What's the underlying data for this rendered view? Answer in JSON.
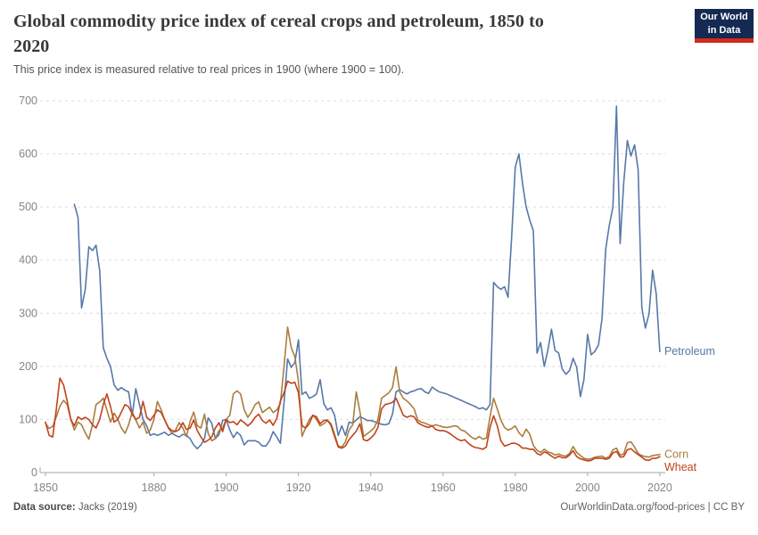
{
  "header": {
    "title_line1": "Global commodity price index of cereal crops and petroleum, 1850 to",
    "title_line2": "2020",
    "subtitle": "This price index is measured relative to real prices in 1900 (where 1900 = 100).",
    "logo": {
      "line1": "Our World",
      "line2": "in Data",
      "bg_color": "#152A52",
      "accent_color": "#D22A1C"
    }
  },
  "footer": {
    "source_label": "Data source:",
    "source_value": " Jacks (2019)",
    "right_text": "OurWorldinData.org/food-prices | CC BY"
  },
  "chart_data": {
    "type": "line",
    "title": "Global commodity price index of cereal crops and petroleum, 1850 to 2020",
    "subtitle": "This price index is measured relative to real prices in 1900 (where 1900 = 100).",
    "grid": "dashed horizontal",
    "legend_position": "end-of-line labels",
    "style": {
      "grid_color": "#dcdcdc",
      "axis_color": "#a6a6a6",
      "tick_label_color": "#858585"
    },
    "x_axis": {
      "range": [
        1850,
        2021
      ],
      "ticks": [
        1850,
        1880,
        1900,
        1920,
        1940,
        1960,
        1980,
        2000,
        2020
      ]
    },
    "y_axis": {
      "range": [
        0,
        700
      ],
      "ticks": [
        0,
        100,
        200,
        300,
        400,
        500,
        600,
        700
      ]
    },
    "series": [
      {
        "name": "Petroleum",
        "color": "#5778A8",
        "start_year": 1858,
        "values": [
          505,
          480,
          310,
          345,
          425,
          418,
          428,
          380,
          235,
          215,
          200,
          165,
          155,
          160,
          155,
          152,
          108,
          158,
          128,
          100,
          88,
          70,
          73,
          70,
          73,
          76,
          70,
          74,
          70,
          67,
          72,
          70,
          64,
          52,
          45,
          52,
          64,
          103,
          93,
          64,
          71,
          98,
          100,
          80,
          66,
          76,
          70,
          52,
          60,
          60,
          60,
          57,
          50,
          50,
          60,
          77,
          67,
          55,
          132,
          214,
          198,
          207,
          250,
          147,
          152,
          140,
          143,
          148,
          175,
          130,
          118,
          122,
          108,
          70,
          88,
          70,
          95,
          93,
          99,
          105,
          102,
          98,
          98,
          96,
          93,
          91,
          90,
          92,
          110,
          152,
          156,
          152,
          148,
          152,
          154,
          157,
          158,
          152,
          149,
          161,
          156,
          152,
          150,
          148,
          145,
          142,
          139,
          136,
          133,
          130,
          127,
          124,
          120,
          122,
          118,
          128,
          358,
          350,
          345,
          350,
          330,
          445,
          575,
          600,
          545,
          500,
          475,
          455,
          225,
          245,
          200,
          230,
          270,
          230,
          225,
          195,
          185,
          192,
          215,
          198,
          143,
          175,
          260,
          222,
          228,
          240,
          290,
          420,
          465,
          500,
          690,
          431,
          545,
          625,
          596,
          617,
          570,
          311,
          272,
          299,
          381,
          336,
          228
        ]
      },
      {
        "name": "Corn",
        "color": "#A97E3F",
        "start_year": 1850,
        "values": [
          93,
          83,
          87,
          105,
          125,
          136,
          128,
          100,
          80,
          95,
          90,
          75,
          63,
          90,
          128,
          133,
          140,
          118,
          95,
          112,
          100,
          84,
          74,
          90,
          114,
          99,
          84,
          95,
          74,
          80,
          100,
          134,
          118,
          99,
          84,
          74,
          80,
          94,
          84,
          68,
          96,
          114,
          88,
          84,
          110,
          74,
          60,
          64,
          79,
          84,
          100,
          108,
          148,
          154,
          148,
          118,
          104,
          114,
          128,
          133,
          113,
          118,
          123,
          113,
          118,
          130,
          200,
          274,
          235,
          218,
          172,
          68,
          85,
          100,
          108,
          100,
          88,
          92,
          98,
          92,
          72,
          50,
          48,
          58,
          80,
          90,
          152,
          115,
          68,
          73,
          78,
          85,
          100,
          140,
          145,
          150,
          160,
          199,
          152,
          140,
          135,
          128,
          120,
          99,
          95,
          93,
          90,
          88,
          90,
          88,
          86,
          85,
          86,
          88,
          87,
          80,
          78,
          72,
          66,
          63,
          68,
          63,
          65,
          105,
          140,
          120,
          99,
          85,
          80,
          83,
          88,
          75,
          68,
          82,
          72,
          51,
          42,
          38,
          44,
          39,
          37,
          33,
          35,
          32,
          31,
          36,
          49,
          38,
          32,
          27,
          25,
          26,
          29,
          30,
          31,
          27,
          30,
          43,
          46,
          33,
          35,
          56,
          58,
          48,
          36,
          32,
          30,
          29,
          32,
          33,
          34
        ]
      },
      {
        "name": "Wheat",
        "color": "#C2431C",
        "start_year": 1850,
        "values": [
          95,
          70,
          67,
          120,
          178,
          165,
          135,
          100,
          88,
          105,
          100,
          104,
          100,
          90,
          84,
          100,
          128,
          148,
          124,
          95,
          100,
          114,
          128,
          124,
          110,
          100,
          104,
          134,
          104,
          98,
          108,
          118,
          113,
          99,
          85,
          79,
          77,
          81,
          94,
          81,
          84,
          99,
          79,
          67,
          57,
          61,
          67,
          84,
          94,
          77,
          100,
          94,
          96,
          90,
          99,
          94,
          88,
          94,
          104,
          110,
          98,
          93,
          99,
          89,
          102,
          135,
          150,
          172,
          168,
          170,
          150,
          88,
          84,
          92,
          108,
          105,
          92,
          98,
          99,
          89,
          68,
          48,
          46,
          50,
          62,
          70,
          78,
          92,
          62,
          60,
          65,
          72,
          85,
          120,
          128,
          130,
          132,
          140,
          124,
          108,
          104,
          107,
          105,
          94,
          90,
          87,
          85,
          88,
          81,
          79,
          79,
          77,
          73,
          68,
          63,
          60,
          62,
          55,
          50,
          47,
          46,
          44,
          48,
          85,
          107,
          88,
          60,
          50,
          52,
          55,
          55,
          52,
          46,
          46,
          44,
          44,
          36,
          33,
          39,
          36,
          31,
          27,
          31,
          28,
          28,
          33,
          41,
          30,
          26,
          24,
          22,
          23,
          27,
          27,
          27,
          25,
          27,
          37,
          40,
          29,
          30,
          43,
          45,
          39,
          34,
          29,
          24,
          23,
          27,
          27,
          30
        ]
      }
    ]
  }
}
